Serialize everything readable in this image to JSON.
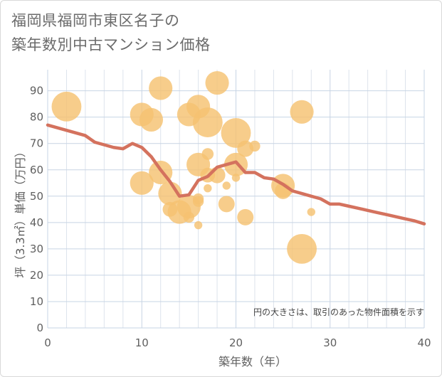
{
  "title": {
    "line1": "福岡県福岡市東区名子の",
    "line2": "築年数別中古マンション価格"
  },
  "note": "円の大きさは、取引のあった物件面積を示す",
  "colors": {
    "bubble": "#f5c272",
    "line": "#d4725e",
    "grid": "#dde3ec",
    "grid_major": "#c7d4e4",
    "text": "#6b6b6b"
  },
  "chart_data": {
    "type": "scatter",
    "title": "福岡県福岡市東区名子の 築年数別中古マンション価格",
    "xlabel": "築年数（年）",
    "ylabel": "坪（3.3㎡）単価（万円）",
    "xlim": [
      0,
      40
    ],
    "ylim": [
      0,
      98
    ],
    "xticks": [
      "0",
      "10",
      "20",
      "30",
      "40"
    ],
    "yticks": [
      "0",
      "10",
      "20",
      "30",
      "40",
      "50",
      "60",
      "70",
      "80",
      "90"
    ],
    "grid": true,
    "bubble_size_meaning": "取引のあった物件面積",
    "bubbles": [
      {
        "x": 2,
        "y": 84,
        "size": 90
      },
      {
        "x": 10,
        "y": 81,
        "size": 55
      },
      {
        "x": 11,
        "y": 79,
        "size": 55
      },
      {
        "x": 12,
        "y": 91,
        "size": 55
      },
      {
        "x": 15,
        "y": 81,
        "size": 55
      },
      {
        "x": 16,
        "y": 84,
        "size": 55
      },
      {
        "x": 17,
        "y": 78,
        "size": 90
      },
      {
        "x": 18,
        "y": 93,
        "size": 55
      },
      {
        "x": 20,
        "y": 74,
        "size": 90
      },
      {
        "x": 21,
        "y": 68,
        "size": 25
      },
      {
        "x": 22,
        "y": 69,
        "size": 10
      },
      {
        "x": 17,
        "y": 66,
        "size": 12
      },
      {
        "x": 16,
        "y": 62,
        "size": 55
      },
      {
        "x": 20,
        "y": 62,
        "size": 55
      },
      {
        "x": 12,
        "y": 59,
        "size": 55
      },
      {
        "x": 10,
        "y": 55,
        "size": 55
      },
      {
        "x": 13,
        "y": 51,
        "size": 55
      },
      {
        "x": 17,
        "y": 58,
        "size": 20
      },
      {
        "x": 18,
        "y": 58,
        "size": 25
      },
      {
        "x": 17,
        "y": 53,
        "size": 5
      },
      {
        "x": 19,
        "y": 54,
        "size": 5
      },
      {
        "x": 20,
        "y": 57,
        "size": 5
      },
      {
        "x": 25,
        "y": 54,
        "size": 55
      },
      {
        "x": 25,
        "y": 52,
        "size": 25
      },
      {
        "x": 27,
        "y": 82,
        "size": 55
      },
      {
        "x": 28,
        "y": 44,
        "size": 5
      },
      {
        "x": 13,
        "y": 45,
        "size": 20
      },
      {
        "x": 14,
        "y": 44,
        "size": 55
      },
      {
        "x": 15,
        "y": 46,
        "size": 55
      },
      {
        "x": 15,
        "y": 42,
        "size": 10
      },
      {
        "x": 16,
        "y": 49,
        "size": 10
      },
      {
        "x": 16,
        "y": 48,
        "size": 10
      },
      {
        "x": 16,
        "y": 39,
        "size": 5
      },
      {
        "x": 19,
        "y": 47,
        "size": 25
      },
      {
        "x": 21,
        "y": 42,
        "size": 25
      },
      {
        "x": 27,
        "y": 30,
        "size": 90
      }
    ],
    "trend_line": {
      "x": [
        0,
        2,
        4,
        5,
        7,
        8,
        9,
        10,
        11,
        12,
        13,
        14,
        15,
        16,
        17,
        18,
        19,
        20,
        21,
        22,
        23,
        24,
        25,
        26,
        27,
        28,
        29,
        30,
        31,
        32,
        33,
        34,
        35,
        36,
        37,
        38,
        39,
        40
      ],
      "y": [
        77,
        75,
        73,
        70.5,
        68.5,
        68,
        70,
        68.5,
        65,
        60,
        55.5,
        50,
        50.5,
        56,
        57.5,
        61,
        62,
        63,
        59,
        59,
        57,
        56.5,
        54.5,
        52,
        51,
        50,
        49,
        47,
        47,
        46.2,
        45.4,
        44.6,
        43.8,
        43,
        42.2,
        41.4,
        40.6,
        39.5
      ]
    }
  }
}
